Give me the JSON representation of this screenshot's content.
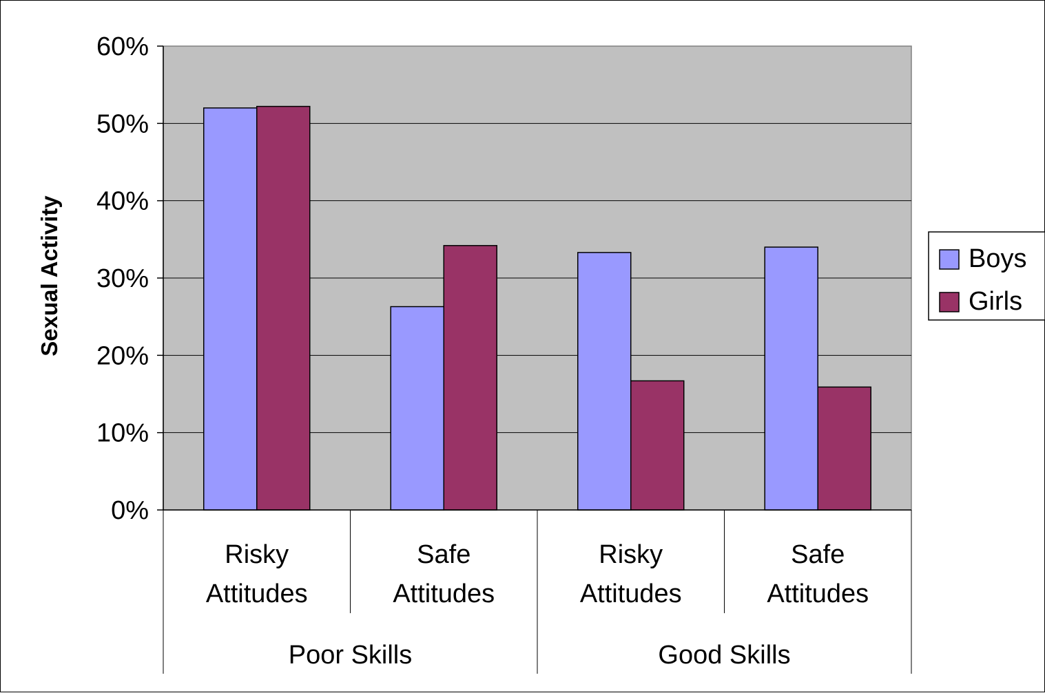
{
  "chart_data": {
    "type": "bar",
    "ylabel": "Sexual Activity",
    "ylim": [
      0,
      0.6
    ],
    "yticks": [
      "0%",
      "10%",
      "20%",
      "30%",
      "40%",
      "50%",
      "60%"
    ],
    "categories": [
      [
        "Risky",
        "Attitudes"
      ],
      [
        "Safe",
        "Attitudes"
      ],
      [
        "Risky",
        "Attitudes"
      ],
      [
        "Safe",
        "Attitudes"
      ]
    ],
    "groups": [
      "Poor Skills",
      "Good Skills"
    ],
    "series": [
      {
        "name": "Boys",
        "color": "#9999ff",
        "values": [
          0.52,
          0.263,
          0.333,
          0.34
        ]
      },
      {
        "name": "Girls",
        "color": "#993366",
        "values": [
          0.522,
          0.342,
          0.167,
          0.159
        ]
      }
    ],
    "plot_background": "#c0c0c0",
    "grid": true,
    "legend_position": "right"
  }
}
